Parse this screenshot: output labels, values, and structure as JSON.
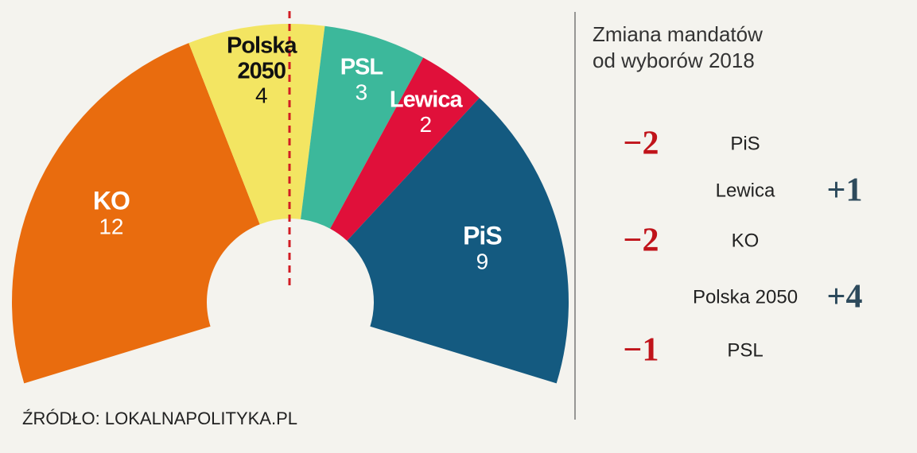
{
  "chart_data": {
    "type": "semicircle-donut",
    "categories": [
      "KO",
      "Polska 2050",
      "PSL",
      "Lewica",
      "PiS"
    ],
    "values": [
      12,
      4,
      3,
      2,
      9
    ],
    "colors": [
      "#e96c0e",
      "#f3e562",
      "#3cb89b",
      "#e0103a",
      "#145a80"
    ]
  },
  "changes": {
    "title": [
      "Zmiana mandatów",
      "od wyborów 2018"
    ],
    "rows": [
      {
        "change": "−2",
        "party": "PiS"
      },
      {
        "change": "+1",
        "party": "Lewica"
      },
      {
        "change": "−2",
        "party": "KO"
      },
      {
        "change": "+4",
        "party": "Polska 2050"
      },
      {
        "change": "−1",
        "party": "PSL"
      }
    ]
  },
  "source": "ŹRÓDŁO: LOKALNAPOLITYKA.PL"
}
